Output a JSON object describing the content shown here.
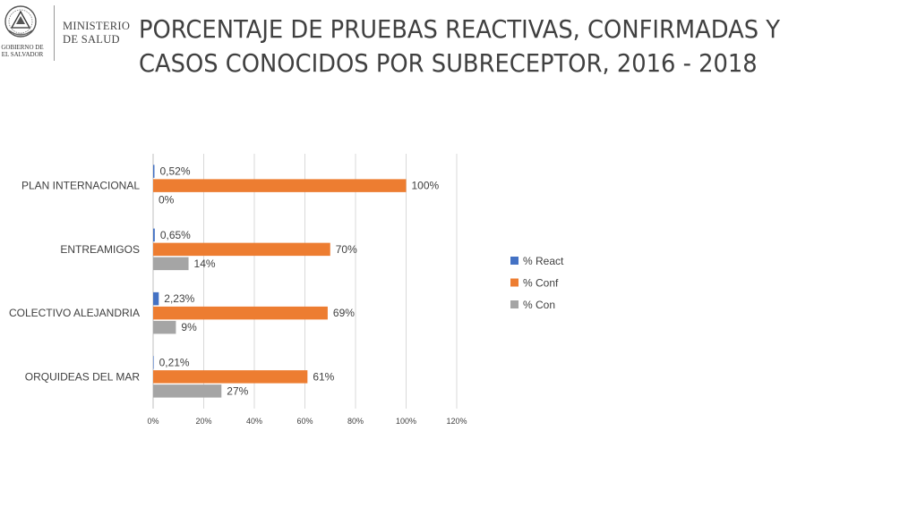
{
  "header": {
    "ministry_line1": "MINISTERIO",
    "ministry_line2": "DE SALUD",
    "seal_line1": "GOBIERNO DE",
    "seal_line2": "EL SALVADOR",
    "seal_icon": "el-salvador-coat-of-arms-icon"
  },
  "slide": {
    "title_line1": "PORCENTAJE DE PRUEBAS REACTIVAS, CONFIRMADAS Y",
    "title_line2": "CASOS CONOCIDOS POR SUBRECEPTOR, 2016 - 2018"
  },
  "chart_data": {
    "type": "bar",
    "orientation": "horizontal",
    "title": "",
    "xlabel": "",
    "ylabel": "",
    "categories": [
      "PLAN INTERNACIONAL",
      "ENTREAMIGOS",
      "COLECTIVO ALEJANDRIA",
      "ORQUIDEAS DEL MAR"
    ],
    "x_ticks": [
      "0%",
      "20%",
      "40%",
      "60%",
      "80%",
      "100%",
      "120%"
    ],
    "xlim": [
      0,
      120
    ],
    "grid": true,
    "legend_position": "right",
    "series": [
      {
        "name": "% React",
        "color": "#4472C4",
        "values": [
          0.52,
          0.65,
          2.23,
          0.21
        ],
        "labels": [
          "0,52%",
          "0,65%",
          "2,23%",
          "0,21%"
        ]
      },
      {
        "name": "% Conf",
        "color": "#ED7D31",
        "values": [
          100,
          70,
          69,
          61
        ],
        "labels": [
          "100%",
          "70%",
          "69%",
          "61%"
        ]
      },
      {
        "name": "% Con",
        "color": "#A5A5A5",
        "values": [
          0,
          14,
          9,
          27
        ],
        "labels": [
          "0%",
          "14%",
          "9%",
          "27%"
        ]
      }
    ]
  }
}
